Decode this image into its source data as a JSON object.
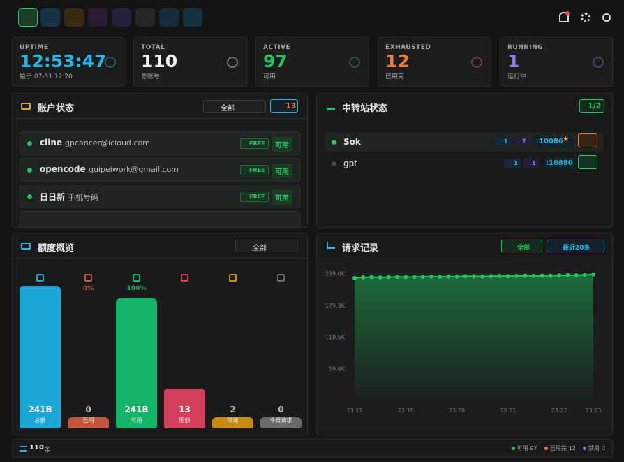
{
  "stats": [
    {
      "label": "UPTIME",
      "value": "12:53:47",
      "sub": "始于 07-31 12:20",
      "color": "#22b8e6"
    },
    {
      "label": "TOTAL",
      "value": 110,
      "sub": "总账号",
      "color": "#f2f2f2"
    },
    {
      "label": "ACTIVE",
      "value": 97,
      "sub": "可用",
      "color": "#22c55e"
    },
    {
      "label": "EXHAUSTED",
      "value": 12,
      "sub": "已用完",
      "color": "#f07a3a"
    },
    {
      "label": "RUNNING",
      "value": 1,
      "sub": "运行中",
      "color": "#8b7cf6"
    }
  ],
  "accounts": {
    "title": "账户状态",
    "filter": "全部",
    "count": 13,
    "rows": [
      {
        "name": "cline",
        "email": "gpcancer@icloud.com",
        "badge": "FREE",
        "status": "可用"
      },
      {
        "name": "opencode",
        "email": "guipeiwork@gmail.com",
        "badge": "FREE",
        "status": "可用"
      },
      {
        "name": "日日新",
        "email": "手机号码",
        "badge": "FREE",
        "status": "可用"
      }
    ]
  },
  "relays": {
    "title": "中转站状态",
    "badge": "1/2",
    "rows": [
      {
        "name": "Sok",
        "keys": 1,
        "models": 7,
        "port": ":10086",
        "active": true
      },
      {
        "name": "gpt",
        "keys": 1,
        "models": 1,
        "port": ":10880",
        "active": false
      }
    ]
  },
  "quota": {
    "title": "额度概览",
    "filter": "全部",
    "items": [
      {
        "percent": null,
        "value": "241B",
        "label": "总额",
        "color": "#1aa6d6"
      },
      {
        "percent": "0%",
        "value": 0,
        "label": "已用",
        "color": "#c2553a"
      },
      {
        "percent": "100%",
        "value": "241B",
        "label": "可用",
        "color": "#12b468"
      },
      {
        "percent": null,
        "value": 13,
        "label": "限额",
        "color": "#d33f5a"
      },
      {
        "percent": null,
        "value": 2,
        "label": "限速",
        "color": "#c98a10"
      },
      {
        "percent": null,
        "value": 0,
        "label": "今日请求",
        "color": "#6a6a6a"
      }
    ]
  },
  "requests": {
    "title": "请求记录",
    "filter": "全部",
    "range": "最近20条",
    "chart_data": {
      "type": "line",
      "color": "#22c55e",
      "categories": [
        "23:17",
        null,
        null,
        null,
        null,
        null,
        "23:19",
        null,
        null,
        null,
        null,
        null,
        "23:20",
        null,
        null,
        null,
        null,
        null,
        "23:21",
        null,
        null,
        null,
        null,
        null,
        "23:22",
        null,
        null,
        null,
        "23:23"
      ],
      "values": [
        231000,
        232000,
        232500,
        232000,
        232500,
        233000,
        232500,
        233000,
        233000,
        233500,
        233000,
        233500,
        233500,
        234000,
        234000,
        233500,
        234000,
        234500,
        234000,
        234500,
        235000,
        234500,
        235000,
        235000,
        235500,
        236000,
        236000,
        236500,
        237500
      ],
      "ylim": [
        0,
        253000
      ],
      "yticks": [
        {
          "value": 59800,
          "label": "59.8K"
        },
        {
          "value": 119500,
          "label": "119.5K"
        },
        {
          "value": 179300,
          "label": "179.3K"
        },
        {
          "value": 239000,
          "label": "239.0K"
        }
      ]
    }
  },
  "footer": {
    "count": 110,
    "unit": "条",
    "legend": [
      {
        "label": "可用",
        "value": 97,
        "color": "#22c55e"
      },
      {
        "label": "已用完",
        "value": 12,
        "color": "#f07a3a"
      },
      {
        "label": "禁用",
        "value": 0,
        "color": "#8b7cf6"
      }
    ]
  }
}
